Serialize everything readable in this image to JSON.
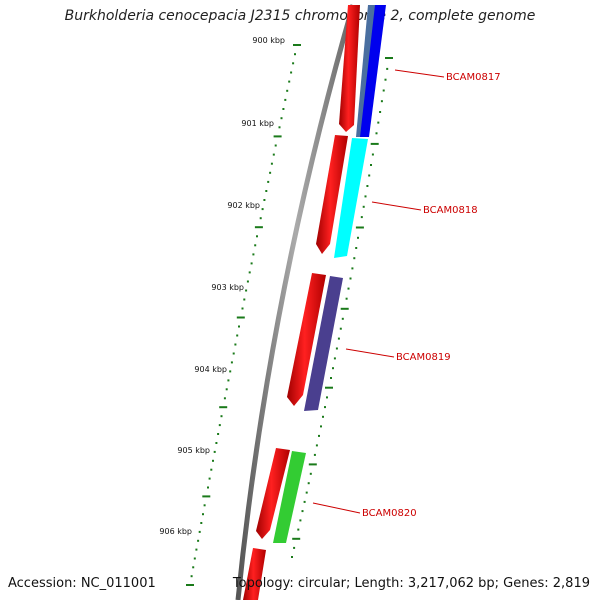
{
  "title": "Burkholderia cenocepacia J2315 chromosome 2, complete genome",
  "footer": {
    "accession": "Accession: NC_011001",
    "summary": "Topology: circular; Length: 3,217,062 bp; Genes: 2,819"
  },
  "kbp_labels": [
    {
      "text": "900 kbp",
      "kbp": 900
    },
    {
      "text": "901 kbp",
      "kbp": 901
    },
    {
      "text": "902 kbp",
      "kbp": 902
    },
    {
      "text": "903 kbp",
      "kbp": 903
    },
    {
      "text": "904 kbp",
      "kbp": 904
    },
    {
      "text": "905 kbp",
      "kbp": 905
    },
    {
      "text": "906 kbp",
      "kbp": 906
    }
  ],
  "genes": [
    {
      "label": "BCAM0817",
      "color": "#0000ee"
    },
    {
      "label": "BCAM0818",
      "color": "#00ffff"
    },
    {
      "label": "BCAM0819",
      "color": "#4a3f8f"
    },
    {
      "label": "BCAM0820",
      "color": "#33cc33"
    }
  ],
  "colors": {
    "cds": "#ff0000",
    "backbone": "#808080",
    "tick": "#1a7a1a",
    "label": "#cc0000"
  }
}
